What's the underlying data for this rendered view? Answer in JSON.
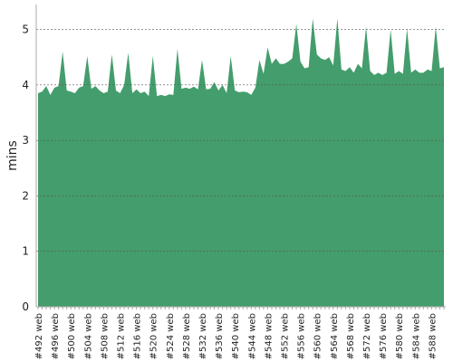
{
  "chart_data": {
    "type": "area",
    "y_label": "mins",
    "categories": [
      "#492 web",
      null,
      null,
      null,
      "#496 web",
      null,
      null,
      null,
      "#500 web",
      null,
      null,
      null,
      "#504 web",
      null,
      null,
      null,
      "#508 web",
      null,
      null,
      null,
      "#512 web",
      null,
      null,
      null,
      "#516 web",
      null,
      null,
      null,
      "#520 web",
      null,
      null,
      null,
      "#524 web",
      null,
      null,
      null,
      "#528 web",
      null,
      null,
      null,
      "#532 web",
      null,
      null,
      null,
      "#536 web",
      null,
      null,
      null,
      "#540 web",
      null,
      null,
      null,
      "#544 web",
      null,
      null,
      null,
      "#548 web",
      null,
      null,
      null,
      "#552 web",
      null,
      null,
      null,
      "#556 web",
      null,
      null,
      null,
      "#560 web",
      null,
      null,
      null,
      "#564 web",
      null,
      null,
      null,
      "#568 web",
      null,
      null,
      null,
      "#572 web",
      null,
      null,
      null,
      "#576 web",
      null,
      null,
      null,
      "#580 web",
      null,
      null,
      null,
      "#584 web",
      null,
      null,
      null,
      "#588 web",
      null,
      null,
      null
    ],
    "values": [
      3.85,
      3.88,
      3.98,
      3.82,
      3.95,
      3.98,
      4.6,
      3.9,
      3.88,
      3.85,
      3.95,
      3.98,
      4.52,
      3.93,
      3.98,
      3.9,
      3.85,
      3.88,
      4.55,
      3.9,
      3.85,
      4.0,
      4.58,
      3.85,
      3.92,
      3.85,
      3.88,
      3.8,
      4.52,
      3.8,
      3.82,
      3.8,
      3.83,
      3.82,
      4.65,
      3.93,
      3.95,
      3.93,
      3.97,
      3.92,
      4.45,
      3.92,
      3.93,
      4.05,
      3.9,
      4.0,
      3.85,
      4.52,
      3.9,
      3.87,
      3.88,
      3.87,
      3.82,
      3.95,
      4.45,
      4.2,
      4.68,
      4.38,
      4.48,
      4.38,
      4.38,
      4.42,
      4.48,
      5.1,
      4.42,
      4.3,
      4.32,
      5.2,
      4.55,
      4.48,
      4.45,
      4.5,
      4.35,
      5.2,
      4.28,
      4.25,
      4.32,
      4.22,
      4.38,
      4.3,
      5.05,
      4.25,
      4.18,
      4.22,
      4.18,
      4.22,
      5.0,
      4.2,
      4.25,
      4.2,
      5.02,
      4.22,
      4.28,
      4.22,
      4.22,
      4.28,
      4.25,
      5.05,
      4.3,
      4.32
    ],
    "color": "#449d6c",
    "ylim": [
      0,
      5.45
    ],
    "yticks": [
      0,
      1,
      2,
      3,
      4,
      5
    ],
    "grid": true
  }
}
